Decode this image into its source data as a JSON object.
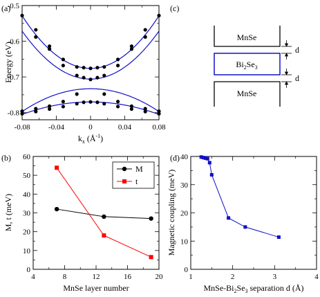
{
  "panels": {
    "a": {
      "label": "(a)",
      "xlabel_main": "k",
      "xlabel_sub": "x",
      "xlabel_rest": " (Å",
      "xlabel_sup": "-1",
      "xlabel_end": ")",
      "ylabel": "Energy (eV)",
      "xticks": [
        "-0.08",
        "-0.04",
        "0",
        "0.04",
        "0.08"
      ],
      "yticks": [
        "-0.8",
        "-0.7",
        "-0.6",
        "-0.5"
      ]
    },
    "b": {
      "label": "(b)",
      "xlabel": "MnSe layer number",
      "ylabel": "M, t (meV)",
      "xticks": [
        "4",
        "8",
        "12",
        "16",
        "20"
      ],
      "yticks": [
        "0",
        "10",
        "20",
        "30",
        "40",
        "50",
        "60"
      ]
    },
    "c": {
      "label": "(c)",
      "top_layer": "MnSe",
      "middle_layer_main": "Bi",
      "middle_layer_sub1": "2",
      "middle_layer_mid": "Se",
      "middle_layer_sub2": "3",
      "bottom_layer": "MnSe",
      "gap_label": "d"
    },
    "d": {
      "label": "(d)",
      "xlabel_pre": "MnSe-Bi",
      "xlabel_sub1": "2",
      "xlabel_mid": "Se",
      "xlabel_sub2": "3",
      "xlabel_post": " separation d (Å)",
      "ylabel": "Magnetic coupling (meV)",
      "xticks": [
        "1",
        "2",
        "3",
        "4"
      ],
      "yticks": [
        "0",
        "10",
        "20",
        "30",
        "40"
      ]
    }
  },
  "colors": {
    "blue": "#1010c8",
    "red": "#ff0000",
    "black": "#000000"
  },
  "chart_data": [
    {
      "panel": "a",
      "type": "line",
      "xlim": [
        -0.08,
        0.08
      ],
      "ylim": [
        -0.82,
        -0.5
      ],
      "series": [
        {
          "style": "curve",
          "x0": 0,
          "e0": -0.676,
          "b": 23
        },
        {
          "style": "curve",
          "x0": 0,
          "e0": -0.706,
          "b": 21
        },
        {
          "style": "curve",
          "x0": 0,
          "e0": -0.733,
          "b": -10
        },
        {
          "style": "curve",
          "x0": 0,
          "e0": -0.77,
          "b": -5.5
        },
        {
          "style": "points",
          "x": [
            -0.08,
            -0.064,
            -0.048,
            -0.032,
            -0.016,
            -0.008,
            0,
            0.008,
            0.016,
            0.032,
            0.048,
            0.064,
            0.08
          ],
          "y": [
            -0.528,
            -0.568,
            -0.614,
            -0.651,
            -0.672,
            -0.674,
            -0.676,
            -0.674,
            -0.672,
            -0.651,
            -0.614,
            -0.568,
            -0.528
          ]
        },
        {
          "style": "points",
          "x": [
            -0.064,
            -0.048,
            -0.032,
            -0.016,
            -0.008,
            0,
            0.008,
            0.016,
            0.032,
            0.048,
            0.064
          ],
          "y": [
            -0.588,
            -0.622,
            -0.668,
            -0.696,
            -0.702,
            -0.707,
            -0.702,
            -0.696,
            -0.668,
            -0.622,
            -0.588
          ]
        },
        {
          "style": "points",
          "x": [
            -0.08,
            -0.064,
            -0.048,
            -0.032,
            -0.016,
            0.016,
            0.032,
            0.048,
            0.064,
            0.08
          ],
          "y": [
            -0.796,
            -0.789,
            -0.782,
            -0.769,
            -0.748,
            -0.748,
            -0.769,
            -0.782,
            -0.789,
            -0.796
          ]
        },
        {
          "style": "points",
          "x": [
            -0.08,
            -0.064,
            -0.048,
            -0.032,
            -0.016,
            -0.008,
            0,
            0.008,
            0.016,
            0.032,
            0.048,
            0.064,
            0.08
          ],
          "y": [
            -0.803,
            -0.797,
            -0.79,
            -0.783,
            -0.775,
            -0.771,
            -0.77,
            -0.771,
            -0.775,
            -0.783,
            -0.79,
            -0.797,
            -0.803
          ]
        }
      ]
    },
    {
      "panel": "b",
      "type": "line",
      "xlim": [
        4,
        20
      ],
      "ylim": [
        0,
        60
      ],
      "legend": "top-right",
      "series": [
        {
          "name": "M",
          "color": "#000000",
          "marker": "circle",
          "x": [
            7,
            13,
            19
          ],
          "y": [
            32,
            28,
            27
          ]
        },
        {
          "name": "t",
          "color": "#ff0000",
          "marker": "square",
          "x": [
            7,
            13,
            19
          ],
          "y": [
            54,
            18,
            6.5
          ]
        }
      ]
    },
    {
      "panel": "d",
      "type": "line",
      "xlim": [
        1,
        4
      ],
      "ylim": [
        0,
        40
      ],
      "series": [
        {
          "color": "#1010c8",
          "marker": "square",
          "x": [
            1.25,
            1.3,
            1.35,
            1.4,
            1.45,
            1.5,
            1.9,
            2.3,
            3.1
          ],
          "y": [
            39.8,
            39.6,
            39.4,
            39.2,
            37.8,
            33.5,
            18.2,
            15.0,
            11.4
          ]
        }
      ]
    }
  ]
}
